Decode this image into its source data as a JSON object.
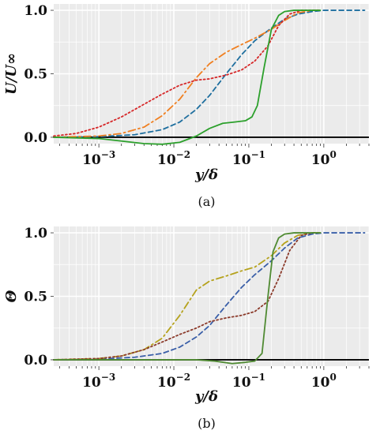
{
  "chart_data": [
    {
      "type": "line",
      "panel_label": "(a)",
      "xlabel": "y/δ",
      "ylabel": "U/U∞",
      "xscale": "log",
      "xlim": [
        0.00025,
        4.0
      ],
      "ylim": [
        -0.05,
        1.05
      ],
      "xticks": [
        {
          "value": 0.001,
          "base": "10",
          "exp": "−3"
        },
        {
          "value": 0.01,
          "base": "10",
          "exp": "−2"
        },
        {
          "value": 0.1,
          "base": "10",
          "exp": "−1"
        },
        {
          "value": 1,
          "base": "10",
          "exp": "0"
        }
      ],
      "yticks": [
        {
          "value": 0.0,
          "label": "0.0"
        },
        {
          "value": 0.5,
          "label": "0.5"
        },
        {
          "value": 1.0,
          "label": "1.0"
        }
      ],
      "grid": true,
      "zero_line": true,
      "series": [
        {
          "color": "#1f6f9f",
          "style": "dashed",
          "x": [
            0.00025,
            0.001,
            0.003,
            0.007,
            0.012,
            0.02,
            0.03,
            0.05,
            0.08,
            0.12,
            0.2,
            0.3,
            0.45,
            0.7,
            1.0,
            1.5,
            2.5,
            3.5
          ],
          "y": [
            0.0,
            0.005,
            0.02,
            0.06,
            0.12,
            0.22,
            0.33,
            0.5,
            0.65,
            0.76,
            0.86,
            0.93,
            0.97,
            0.99,
            1.0,
            1.0,
            1.0,
            1.0
          ]
        },
        {
          "color": "#f07f20",
          "style": "dashdot",
          "x": [
            0.00025,
            0.001,
            0.002,
            0.004,
            0.007,
            0.012,
            0.02,
            0.03,
            0.05,
            0.08,
            0.12,
            0.2,
            0.3,
            0.45,
            0.7,
            0.9
          ],
          "y": [
            0.0,
            0.01,
            0.03,
            0.08,
            0.17,
            0.3,
            0.47,
            0.58,
            0.67,
            0.73,
            0.78,
            0.85,
            0.92,
            0.98,
            1.0,
            1.0
          ]
        },
        {
          "color": "#d62728",
          "style": "dotted",
          "x": [
            0.00025,
            0.0005,
            0.001,
            0.002,
            0.004,
            0.007,
            0.012,
            0.02,
            0.03,
            0.05,
            0.08,
            0.12,
            0.18,
            0.25,
            0.35,
            0.5,
            0.7,
            0.9
          ],
          "y": [
            0.01,
            0.03,
            0.08,
            0.16,
            0.26,
            0.34,
            0.41,
            0.45,
            0.46,
            0.49,
            0.53,
            0.6,
            0.72,
            0.88,
            0.97,
            1.0,
            1.0,
            1.0
          ]
        },
        {
          "color": "#2ca02c",
          "style": "solid",
          "x": [
            0.00025,
            0.001,
            0.002,
            0.004,
            0.007,
            0.012,
            0.02,
            0.03,
            0.045,
            0.065,
            0.09,
            0.11,
            0.13,
            0.16,
            0.2,
            0.25,
            0.3,
            0.4,
            0.55,
            0.7,
            0.9
          ],
          "y": [
            0.0,
            -0.01,
            -0.03,
            -0.05,
            -0.055,
            -0.04,
            0.01,
            0.07,
            0.11,
            0.12,
            0.13,
            0.16,
            0.25,
            0.55,
            0.85,
            0.96,
            0.99,
            1.0,
            1.0,
            1.0,
            1.0
          ]
        }
      ]
    },
    {
      "type": "line",
      "panel_label": "(b)",
      "xlabel": "y/δ",
      "ylabel": "Θ",
      "xscale": "log",
      "xlim": [
        0.00025,
        4.0
      ],
      "ylim": [
        -0.05,
        1.05
      ],
      "xticks": [
        {
          "value": 0.001,
          "base": "10",
          "exp": "−3"
        },
        {
          "value": 0.01,
          "base": "10",
          "exp": "−2"
        },
        {
          "value": 0.1,
          "base": "10",
          "exp": "−1"
        },
        {
          "value": 1,
          "base": "10",
          "exp": "0"
        }
      ],
      "yticks": [
        {
          "value": 0.0,
          "label": "0.0"
        },
        {
          "value": 0.5,
          "label": "0.5"
        },
        {
          "value": 1.0,
          "label": "1.0"
        }
      ],
      "grid": true,
      "zero_line": true,
      "series": [
        {
          "color": "#3a5fa8",
          "style": "dashed",
          "x": [
            0.00025,
            0.001,
            0.003,
            0.007,
            0.012,
            0.02,
            0.03,
            0.05,
            0.08,
            0.12,
            0.2,
            0.3,
            0.45,
            0.7,
            1.0,
            1.5,
            2.5,
            3.5
          ],
          "y": [
            0.0,
            0.005,
            0.02,
            0.05,
            0.1,
            0.18,
            0.27,
            0.43,
            0.57,
            0.67,
            0.78,
            0.88,
            0.96,
            0.99,
            1.0,
            1.0,
            1.0,
            1.0
          ]
        },
        {
          "color": "#b5a21c",
          "style": "dashdot",
          "x": [
            0.00025,
            0.001,
            0.002,
            0.004,
            0.007,
            0.012,
            0.02,
            0.03,
            0.05,
            0.08,
            0.12,
            0.2,
            0.3,
            0.45,
            0.7,
            0.9
          ],
          "y": [
            0.0,
            0.01,
            0.03,
            0.08,
            0.17,
            0.35,
            0.55,
            0.62,
            0.66,
            0.7,
            0.73,
            0.82,
            0.92,
            0.98,
            1.0,
            1.0
          ]
        },
        {
          "color": "#8b3a2a",
          "style": "dotted",
          "x": [
            0.00025,
            0.001,
            0.002,
            0.004,
            0.007,
            0.012,
            0.02,
            0.03,
            0.05,
            0.08,
            0.12,
            0.18,
            0.25,
            0.35,
            0.5,
            0.7,
            0.9
          ],
          "y": [
            0.0,
            0.01,
            0.03,
            0.08,
            0.14,
            0.2,
            0.25,
            0.3,
            0.33,
            0.35,
            0.38,
            0.46,
            0.64,
            0.86,
            0.98,
            1.0,
            1.0
          ]
        },
        {
          "color": "#4f8a32",
          "style": "solid",
          "x": [
            0.00025,
            0.001,
            0.003,
            0.007,
            0.012,
            0.02,
            0.035,
            0.06,
            0.09,
            0.12,
            0.15,
            0.18,
            0.21,
            0.25,
            0.3,
            0.4,
            0.55,
            0.7,
            0.9
          ],
          "y": [
            0.0,
            0.0,
            0.0,
            0.0,
            0.0,
            0.0,
            -0.01,
            -0.03,
            -0.02,
            -0.01,
            0.05,
            0.5,
            0.85,
            0.96,
            0.99,
            1.0,
            1.0,
            1.0,
            1.0
          ]
        }
      ]
    }
  ]
}
